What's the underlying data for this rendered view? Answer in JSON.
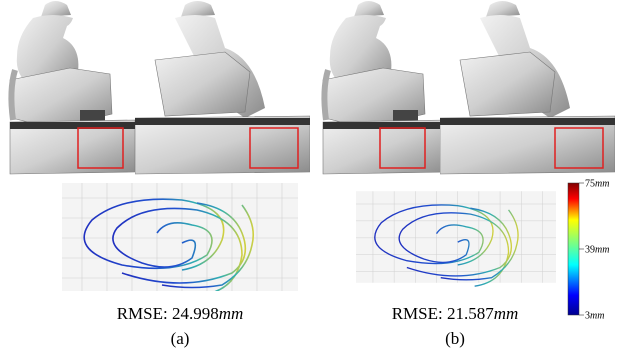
{
  "panels": [
    {
      "metric": "RMSE:",
      "value": 24.998,
      "unit": "mm",
      "caption": "(a)"
    },
    {
      "metric": "RMSE:",
      "value": 21.587,
      "unit": "mm",
      "caption": "(b)"
    }
  ],
  "colorbar": {
    "lim": [
      3,
      75
    ],
    "ticks": [
      75,
      39,
      3
    ],
    "unit": "mm"
  }
}
